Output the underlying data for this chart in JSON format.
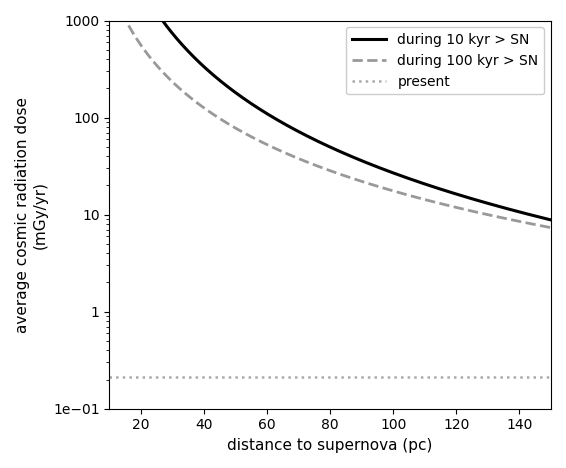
{
  "x_min": 10,
  "x_max": 150,
  "x_ticks": [
    20,
    40,
    60,
    80,
    100,
    120,
    140
  ],
  "xlabel": "distance to supernova (pc)",
  "ylabel": "average cosmic radiation dose\n(mGy/yr)",
  "ylim": [
    0.1,
    1000
  ],
  "xlim": [
    10,
    150
  ],
  "line_10kyr_A": 8500000.0,
  "line_10kyr_n": 2.75,
  "line_10kyr_color": "#000000",
  "line_10kyr_style": "solid",
  "line_10kyr_lw": 2.2,
  "line_10kyr_label": "during 10 kyr > SN",
  "line_100kyr_A": 350000.0,
  "line_100kyr_n": 2.15,
  "line_100kyr_color": "#999999",
  "line_100kyr_style": "dashed",
  "line_100kyr_lw": 2.0,
  "line_100kyr_label": "during 100 kyr > SN",
  "present_value": 0.21,
  "present_color": "#aaaaaa",
  "present_style": "dotted",
  "present_lw": 1.8,
  "present_label": "present",
  "legend_loc": "upper right",
  "legend_fontsize": 10,
  "figsize": [
    5.66,
    4.68
  ],
  "dpi": 100
}
